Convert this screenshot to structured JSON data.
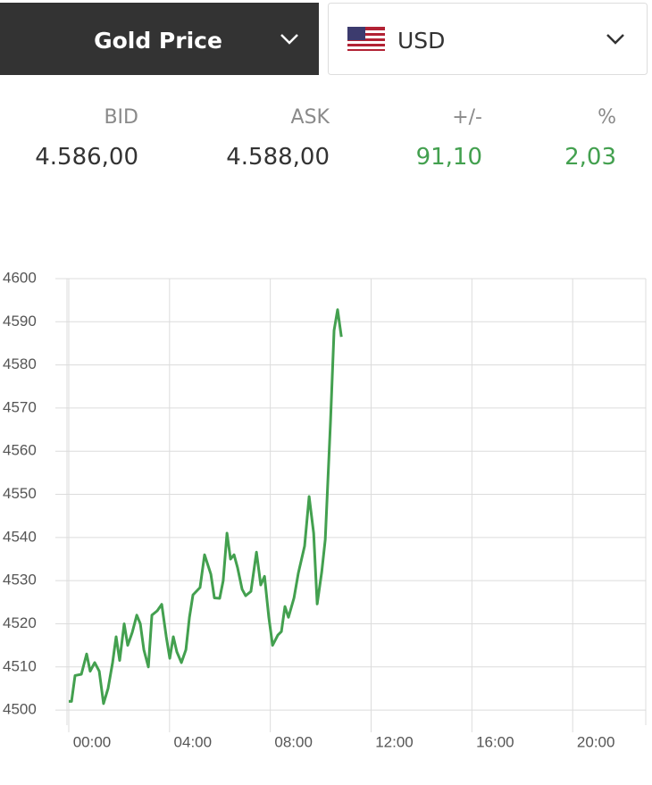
{
  "header": {
    "product": "Gold Price",
    "currency": "USD"
  },
  "quote": {
    "labels": [
      "BID",
      "ASK",
      "+/-",
      "%"
    ],
    "values": [
      "4.586,00",
      "4.588,00",
      "91,10",
      "2,03"
    ]
  },
  "chart_data": {
    "type": "line",
    "x": [
      0,
      0.11,
      0.25,
      0.5,
      0.71,
      0.85,
      1.03,
      1.21,
      1.38,
      1.56,
      1.74,
      1.88,
      2.02,
      2.2,
      2.34,
      2.52,
      2.7,
      2.84,
      2.98,
      3.16,
      3.3,
      3.51,
      3.69,
      3.87,
      4.01,
      4.15,
      4.29,
      4.47,
      4.65,
      4.79,
      4.93,
      5.21,
      5.39,
      5.64,
      5.78,
      5.99,
      6.13,
      6.28,
      6.42,
      6.56,
      6.7,
      6.88,
      7.02,
      7.23,
      7.45,
      7.62,
      7.77,
      7.94,
      8.09,
      8.3,
      8.44,
      8.58,
      8.72,
      8.94,
      9.11,
      9.36,
      9.54,
      9.72,
      9.86,
      10.04,
      10.18,
      10.39,
      10.53,
      10.67,
      10.82
    ],
    "series": [
      {
        "color": "#43a04f",
        "values": [
          4502,
          4502,
          4508,
          4508.3,
          4513,
          4509,
          4511,
          4509,
          4501.5,
          4505,
          4511,
          4517,
          4511.5,
          4520,
          4515,
          4518,
          4522,
          4520,
          4514,
          4510,
          4522,
          4523,
          4524.5,
          4517,
          4512,
          4517,
          4513.5,
          4511,
          4514,
          4521.5,
          4526.7,
          4528.4,
          4536,
          4531.5,
          4526,
          4525.9,
          4530,
          4541,
          4535,
          4536,
          4533,
          4528,
          4526.5,
          4527.5,
          4536.6,
          4529,
          4531,
          4521.5,
          4515,
          4517.4,
          4518.2,
          4524,
          4521.5,
          4526,
          4531.7,
          4538,
          4549.5,
          4541,
          4524.6,
          4532,
          4539.5,
          4567,
          4588,
          4592.8,
          4586.5
        ]
      }
    ],
    "xlim": [
      -0.07,
      22.9
    ],
    "ylim": [
      4496.5,
      4600
    ],
    "xticks": [
      {
        "value": 0,
        "label": "00:00"
      },
      {
        "value": 4,
        "label": "04:00"
      },
      {
        "value": 8,
        "label": "08:00"
      },
      {
        "value": 12,
        "label": "12:00"
      },
      {
        "value": 16,
        "label": "16:00"
      },
      {
        "value": 20,
        "label": "20:00"
      }
    ],
    "yticks": [
      4500,
      4510,
      4520,
      4530,
      4540,
      4550,
      4560,
      4570,
      4580,
      4590,
      4600
    ],
    "grid": true
  }
}
